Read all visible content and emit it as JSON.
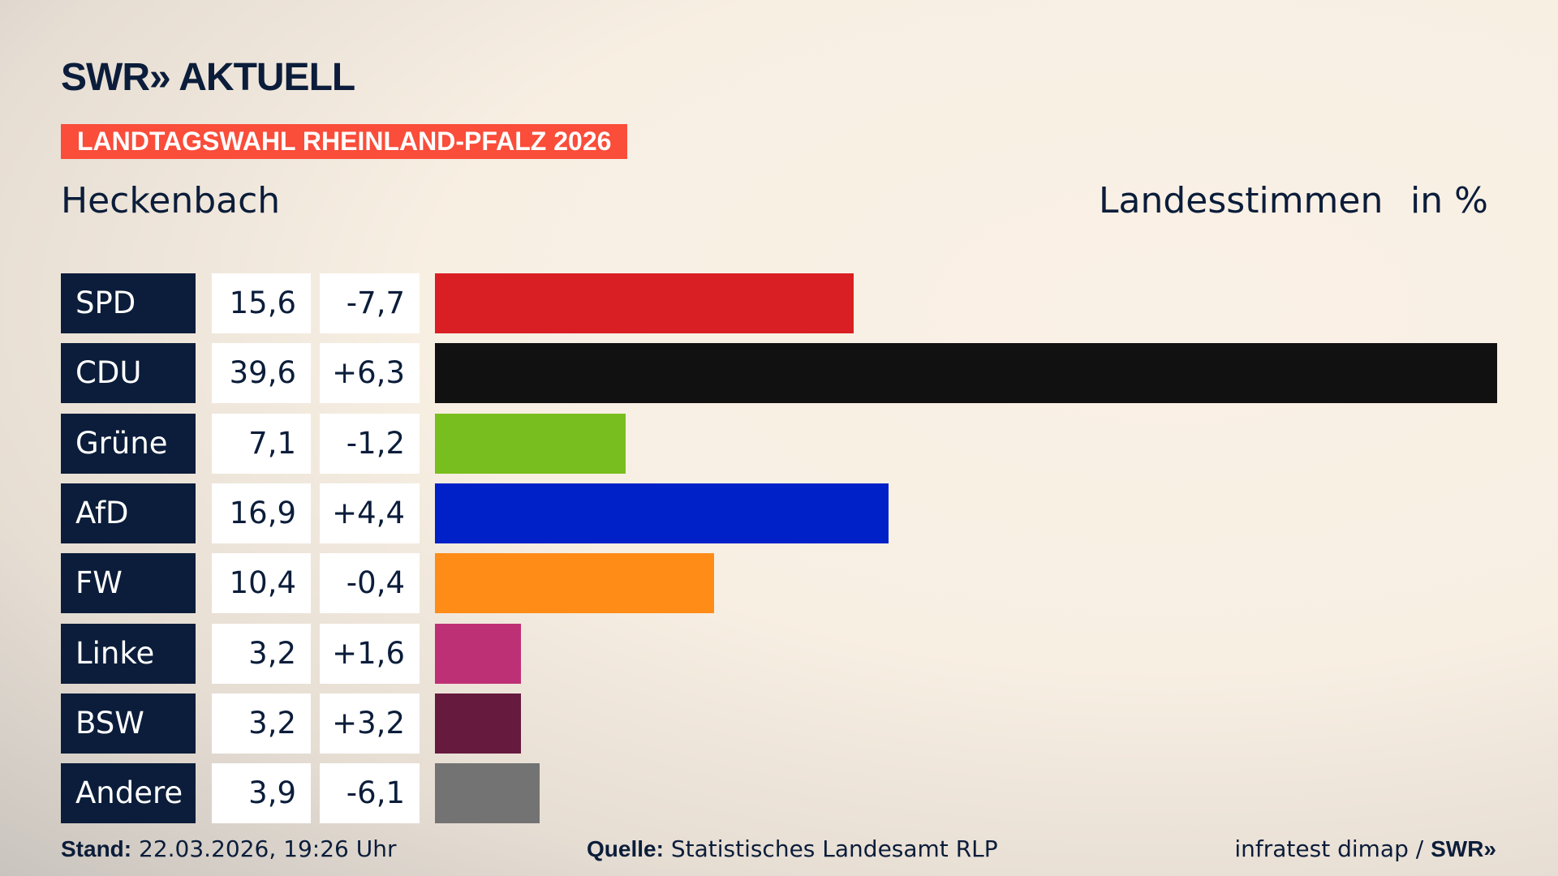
{
  "header": {
    "logo": "SWR» AKTUELL",
    "banner": "LANDTAGSWAHL RHEINLAND-PFALZ 2026",
    "place": "Heckenbach",
    "measure": "Landesstimmen",
    "unit": "in %"
  },
  "chart_data": {
    "type": "bar",
    "orientation": "horizontal",
    "categories": [
      "SPD",
      "CDU",
      "Grüne",
      "AfD",
      "FW",
      "Linke",
      "BSW",
      "Andere"
    ],
    "values": [
      15.6,
      39.6,
      7.1,
      16.9,
      10.4,
      3.2,
      3.2,
      3.9
    ],
    "value_labels": [
      "15,6",
      "39,6",
      "7,1",
      "16,9",
      "10,4",
      "3,2",
      "3,2",
      "3,9"
    ],
    "diff_labels": [
      "-7,7",
      "+6,3",
      "-1,2",
      "+4,4",
      "-0,4",
      "+1,6",
      "+3,2",
      "-6,1"
    ],
    "diffs": [
      -7.7,
      6.3,
      -1.2,
      4.4,
      -0.4,
      1.6,
      3.2,
      -6.1
    ],
    "colors": [
      "#d91f23",
      "#111111",
      "#78be1e",
      "#0021c8",
      "#ff8c17",
      "#be3075",
      "#661a3e",
      "#737373"
    ],
    "xlim": [
      0,
      39.6
    ],
    "grid": false
  },
  "footer": {
    "stand_label": "Stand:",
    "stand": "22.03.2026, 19:26 Uhr",
    "source_label": "Quelle:",
    "source": "Statistisches Landesamt RLP",
    "credit": "infratest dimap /",
    "credit_brand": "SWR»"
  }
}
